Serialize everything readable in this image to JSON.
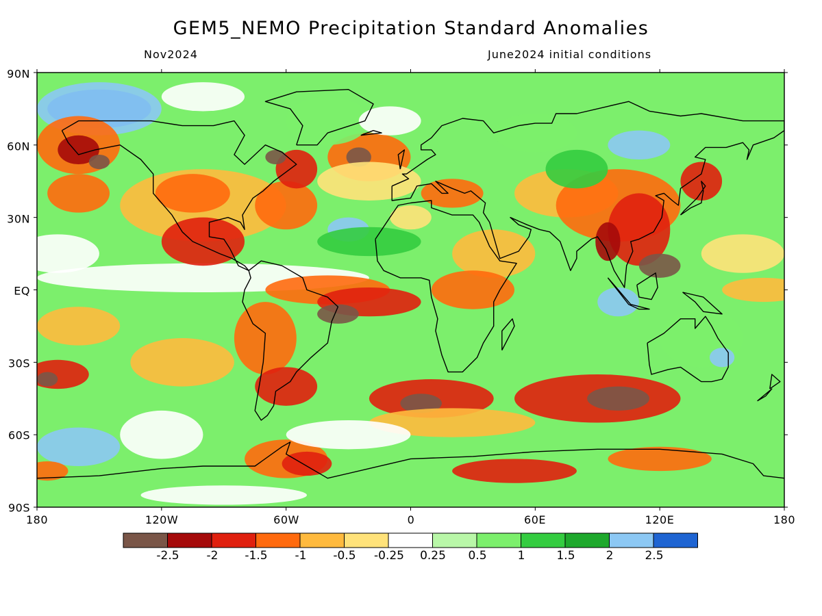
{
  "header": {
    "title": "GEM5_NEMO Precipitation Standard Anomalies",
    "left_label": "Nov2024",
    "right_label": "June2024 initial conditions"
  },
  "map": {
    "y_axis_labels": [
      "90N",
      "60N",
      "30N",
      "EQ",
      "30S",
      "60S",
      "90S"
    ],
    "x_axis_labels": [
      "180",
      "120W",
      "60W",
      "0",
      "60E",
      "120E",
      "180"
    ]
  },
  "legend": {
    "colors": [
      "#7a5648",
      "#a50a0a",
      "#e0200e",
      "#ff6a0e",
      "#ffba3e",
      "#ffe27a",
      "#ffffff",
      "#b9f7a8",
      "#7cef6c",
      "#34cc40",
      "#1ea82c",
      "#8cc8f4",
      "#1e64d2"
    ],
    "labels": [
      "-2.5",
      "-2",
      "-1.5",
      "-1",
      "-0.5",
      "-0.25",
      "0.25",
      "0.5",
      "1",
      "1.5",
      "2",
      "2.5"
    ]
  }
}
